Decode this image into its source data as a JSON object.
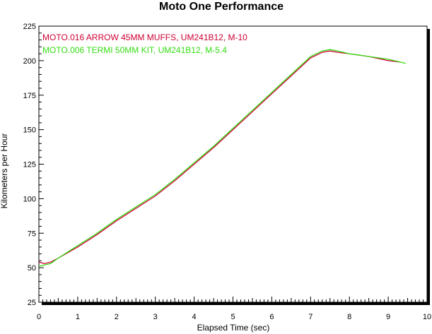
{
  "chart_data": {
    "type": "line",
    "title": "Moto One Performance",
    "xlabel": "Elapsed Time (sec)",
    "ylabel": "Kilometers per Hour",
    "xlim": [
      0,
      10
    ],
    "ylim": [
      25,
      225
    ],
    "x_ticks": [
      "0",
      "1",
      "2",
      "3",
      "4",
      "5",
      "6",
      "7",
      "8",
      "9",
      "10"
    ],
    "y_ticks": [
      "25",
      "50",
      "75",
      "100",
      "125",
      "150",
      "175",
      "200",
      "225"
    ],
    "grid": false,
    "legend_position": "top-left",
    "series": [
      {
        "name": "MOTO.016   ARROW 45MM MUFFS, UM241B12, M-10",
        "color": "#cc0033",
        "x": [
          0,
          0.15,
          0.3,
          0.5,
          1,
          1.5,
          2,
          2.5,
          3,
          3.5,
          4,
          4.5,
          5,
          5.5,
          6,
          6.5,
          7,
          7.3,
          7.5,
          7.7,
          8,
          8.5,
          9,
          9.3
        ],
        "y": [
          54,
          53,
          54,
          57,
          65,
          74,
          84,
          93,
          102,
          113,
          125,
          137,
          150,
          163,
          176,
          189,
          202,
          206,
          207,
          206,
          205,
          203,
          200,
          199
        ]
      },
      {
        "name": "MOTO.006   TERMI 50MM KIT, UM241B12, M-5.4",
        "color": "#33dd11",
        "x": [
          0,
          0.15,
          0.3,
          0.5,
          1,
          1.5,
          2,
          2.5,
          3,
          3.5,
          4,
          4.5,
          5,
          5.5,
          6,
          6.5,
          7,
          7.3,
          7.5,
          7.7,
          8,
          8.5,
          9,
          9.45
        ],
        "y": [
          51,
          52,
          53,
          57,
          66,
          75,
          85,
          94,
          103,
          114,
          126,
          138,
          151,
          164,
          177,
          190,
          203,
          207,
          208,
          207,
          205,
          203,
          201,
          198
        ]
      }
    ]
  }
}
